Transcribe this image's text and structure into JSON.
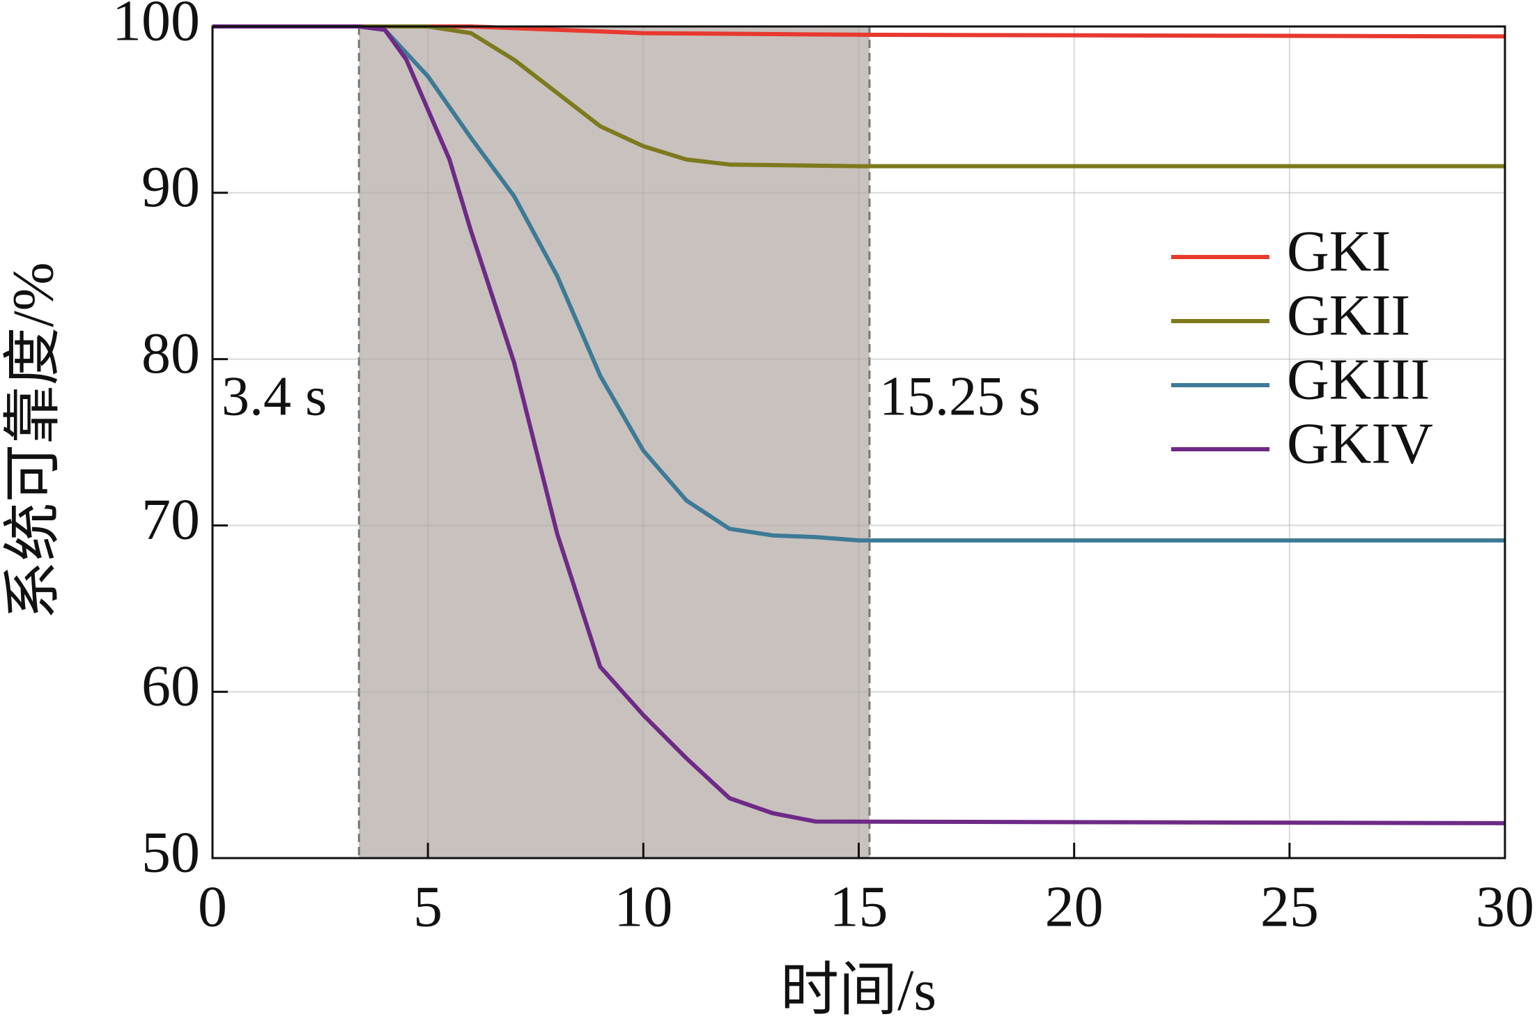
{
  "chart_data": {
    "type": "line",
    "xlabel": "时间/s",
    "ylabel": "系统可靠度/%",
    "xlim": [
      0,
      30
    ],
    "xticks": [
      0,
      5,
      10,
      15,
      20,
      25,
      30
    ],
    "ylim": [
      50,
      100
    ],
    "yticks": [
      50,
      60,
      70,
      80,
      90,
      100
    ],
    "grid": true,
    "legend": "center right",
    "shaded_region": {
      "xmin": 3.4,
      "xmax": 15.25,
      "color": "#c8c1be"
    },
    "annotations": [
      "3.4 s",
      "15.25 s"
    ],
    "series": [
      {
        "name": "GKI",
        "color": "#e8392f",
        "x": [
          0,
          4,
          6,
          8,
          10,
          15,
          30
        ],
        "y": [
          100,
          100,
          100,
          99.8,
          99.6,
          99.5,
          99.4
        ]
      },
      {
        "name": "GKII",
        "color": "#7d7a1e",
        "x": [
          0,
          4,
          5,
          6,
          7,
          8,
          9,
          10,
          11,
          12,
          15,
          30
        ],
        "y": [
          100,
          100,
          100,
          99.6,
          98,
          96,
          94,
          92.8,
          92,
          91.7,
          91.6,
          91.6
        ]
      },
      {
        "name": "GKIII",
        "color": "#3d7a96",
        "x": [
          0,
          3.4,
          4,
          5,
          6,
          7,
          8,
          9,
          10,
          11,
          12,
          13,
          14,
          15,
          30
        ],
        "y": [
          100,
          100,
          99.8,
          97,
          93.3,
          89.8,
          85,
          79,
          74.5,
          71.5,
          69.8,
          69.4,
          69.3,
          69.1,
          69.1
        ]
      },
      {
        "name": "GKIV",
        "color": "#6e2a86",
        "x": [
          0,
          3.4,
          4,
          4.5,
          5,
          5.5,
          6,
          7,
          8,
          9,
          10,
          11,
          12,
          13,
          14,
          30
        ],
        "y": [
          100,
          100,
          99.8,
          98,
          95,
          92,
          87.7,
          79.8,
          69.5,
          61.5,
          58.6,
          56,
          53.6,
          52.7,
          52.2,
          52.1
        ]
      }
    ]
  }
}
